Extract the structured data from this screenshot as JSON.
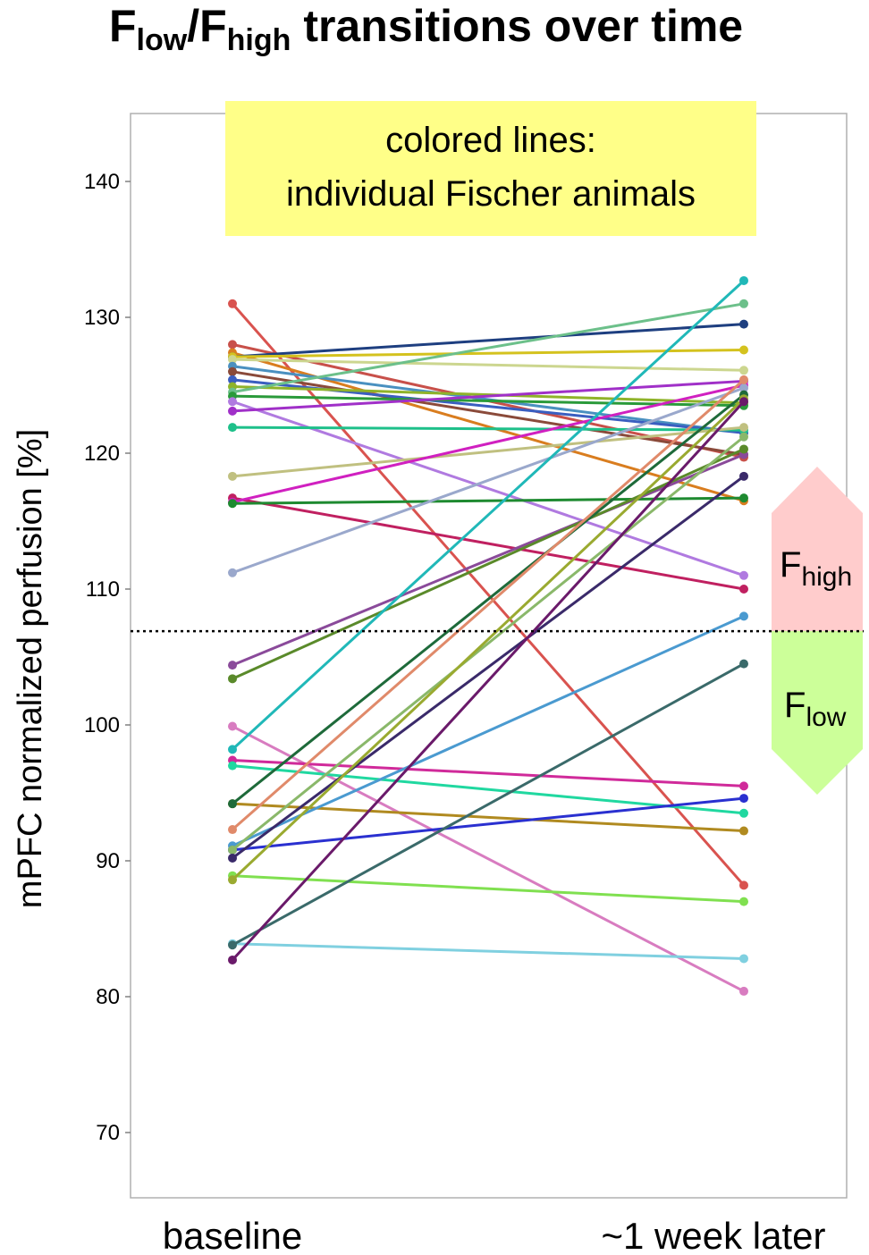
{
  "chart_data": {
    "type": "line",
    "title": {
      "main": "F",
      "sub1": "low",
      "slash": "/F",
      "sub2": "high",
      "rest": " transitions over time"
    },
    "ylabel": "mPFC normalized perfusion [%]",
    "categories": [
      "baseline",
      "~1 week later"
    ],
    "ylim": [
      65,
      145
    ],
    "yticks": [
      70,
      80,
      90,
      100,
      110,
      120,
      130,
      140
    ],
    "grid": false,
    "annotation": {
      "line1": "colored lines:",
      "line2": "individual Fischer animals",
      "color": "#ffff88"
    },
    "threshold": {
      "value": 106.9,
      "style": "dotted"
    },
    "groups": {
      "high": {
        "prefix": "F",
        "sub": "high",
        "color": "#ffcccc"
      },
      "low": {
        "prefix": "F",
        "sub": "low",
        "color": "#ccff99"
      }
    },
    "series": [
      {
        "values": [
          131.0,
          88.2
        ],
        "color": "#d9534f"
      },
      {
        "values": [
          128.0,
          119.7
        ],
        "color": "#c8504a"
      },
      {
        "values": [
          127.4,
          116.5
        ],
        "color": "#d97d1f"
      },
      {
        "values": [
          127.1,
          129.5
        ],
        "color": "#1e3f80"
      },
      {
        "values": [
          127.1,
          127.6
        ],
        "color": "#d4c21e"
      },
      {
        "values": [
          126.9,
          126.1
        ],
        "color": "#ccd68f"
      },
      {
        "values": [
          126.4,
          121.5
        ],
        "color": "#4a90c0"
      },
      {
        "values": [
          126.0,
          119.9
        ],
        "color": "#8a4a3a"
      },
      {
        "values": [
          125.4,
          121.5
        ],
        "color": "#3a5ec0"
      },
      {
        "values": [
          124.9,
          123.7
        ],
        "color": "#8fb32a"
      },
      {
        "values": [
          124.5,
          131.0
        ],
        "color": "#6cc08a"
      },
      {
        "values": [
          124.2,
          123.5
        ],
        "color": "#2a9a3a"
      },
      {
        "values": [
          123.8,
          111.0
        ],
        "color": "#b07ae0"
      },
      {
        "values": [
          123.1,
          125.3
        ],
        "color": "#a030c8"
      },
      {
        "values": [
          121.9,
          121.7
        ],
        "color": "#1ec08a"
      },
      {
        "values": [
          118.3,
          121.9
        ],
        "color": "#c0c080"
      },
      {
        "values": [
          116.7,
          110.0
        ],
        "color": "#c02060"
      },
      {
        "values": [
          116.4,
          125.0
        ],
        "color": "#d020c0"
      },
      {
        "values": [
          116.3,
          116.7
        ],
        "color": "#1e8a30"
      },
      {
        "values": [
          111.2,
          124.8
        ],
        "color": "#9aa8cc"
      },
      {
        "values": [
          104.4,
          119.9
        ],
        "color": "#8a4a9a"
      },
      {
        "values": [
          103.4,
          120.3
        ],
        "color": "#5a8a2a"
      },
      {
        "values": [
          99.9,
          80.4
        ],
        "color": "#d87cc0"
      },
      {
        "values": [
          98.2,
          132.7
        ],
        "color": "#20b8b8"
      },
      {
        "values": [
          97.4,
          95.5
        ],
        "color": "#d02a9a"
      },
      {
        "values": [
          97.0,
          93.5
        ],
        "color": "#20d8a0"
      },
      {
        "values": [
          94.2,
          92.2
        ],
        "color": "#b08a20"
      },
      {
        "values": [
          94.2,
          124.3
        ],
        "color": "#1e6a3a"
      },
      {
        "values": [
          92.3,
          125.4
        ],
        "color": "#e08a6a"
      },
      {
        "values": [
          91.1,
          108.0
        ],
        "color": "#4a9ad0"
      },
      {
        "values": [
          90.8,
          94.6
        ],
        "color": "#2a30d0"
      },
      {
        "values": [
          90.8,
          121.2
        ],
        "color": "#8ab86a"
      },
      {
        "values": [
          90.2,
          118.3
        ],
        "color": "#3a2a6a"
      },
      {
        "values": [
          88.9,
          87.0
        ],
        "color": "#80e050"
      },
      {
        "values": [
          88.6,
          124.0
        ],
        "color": "#9aaa30"
      },
      {
        "values": [
          83.9,
          82.8
        ],
        "color": "#80d0e0"
      },
      {
        "values": [
          83.8,
          104.5
        ],
        "color": "#3a6a6a"
      },
      {
        "values": [
          82.7,
          123.8
        ],
        "color": "#6a1a6a"
      }
    ]
  }
}
